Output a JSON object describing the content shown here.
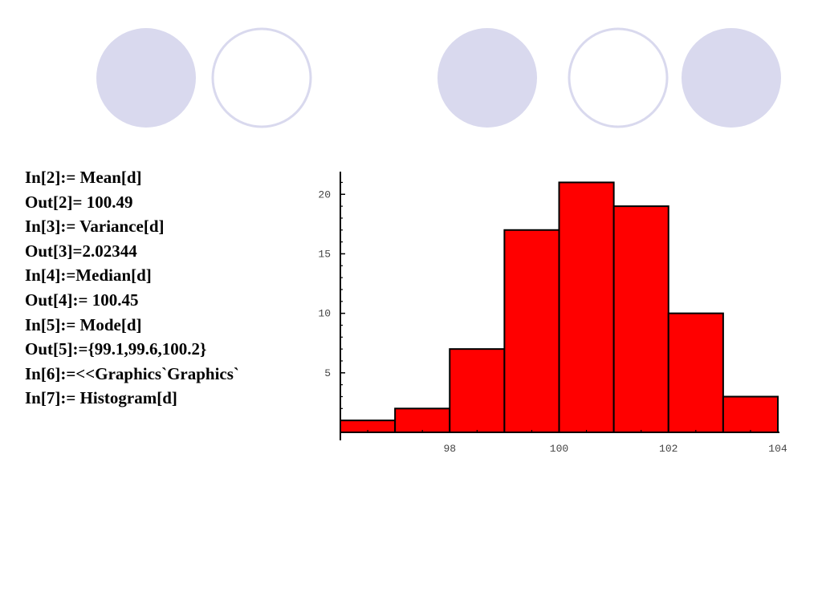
{
  "decoration": {
    "circles": [
      {
        "style": "filled"
      },
      {
        "style": "outline"
      },
      {
        "style": "filled"
      },
      {
        "style": "outline"
      },
      {
        "style": "filled"
      }
    ],
    "fill_color": "#d9d9ee",
    "stroke_color": "#d9d9ee"
  },
  "code_lines": [
    "In[2]:= Mean[d]",
    "Out[2]= 100.49",
    "In[3]:= Variance[d]",
    "Out[3]=2.02344",
    "In[4]:=Median[d]",
    "Out[4]:= 100.45",
    "In[5]:= Mode[d]",
    "Out[5]:={99.1,99.6,100.2}",
    "In[6]:=<<Graphics`Graphics`",
    "In[7]:= Histogram[d]"
  ],
  "chart_data": {
    "type": "bar",
    "bins": [
      {
        "start": 96,
        "end": 97,
        "count": 1
      },
      {
        "start": 97,
        "end": 98,
        "count": 2
      },
      {
        "start": 98,
        "end": 99,
        "count": 7
      },
      {
        "start": 99,
        "end": 100,
        "count": 17
      },
      {
        "start": 100,
        "end": 101,
        "count": 21
      },
      {
        "start": 101,
        "end": 102,
        "count": 19
      },
      {
        "start": 102,
        "end": 103,
        "count": 10
      },
      {
        "start": 103,
        "end": 104,
        "count": 3
      }
    ],
    "xlim": [
      96,
      104
    ],
    "ylim": [
      0,
      21.5
    ],
    "x_ticks": [
      98,
      100,
      102,
      104
    ],
    "y_ticks": [
      5,
      10,
      15,
      20
    ],
    "bar_color": "#ff0000",
    "grid": false,
    "title": "",
    "xlabel": "",
    "ylabel": ""
  }
}
